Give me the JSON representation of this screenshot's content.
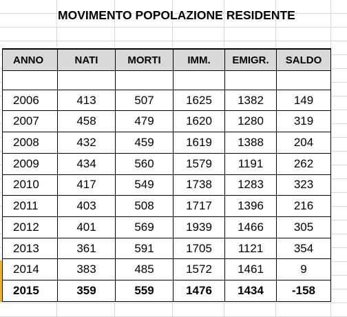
{
  "title": "MOVIMENTO POPOLAZIONE RESIDENTE",
  "table": {
    "headers": [
      "ANNO",
      "NATI",
      "MORTI",
      "IMM.",
      "EMIGR.",
      "SALDO"
    ],
    "rows": [
      [
        "2006",
        "413",
        "507",
        "1625",
        "1382",
        "149"
      ],
      [
        "2007",
        "458",
        "479",
        "1620",
        "1280",
        "319"
      ],
      [
        "2008",
        "432",
        "459",
        "1619",
        "1388",
        "204"
      ],
      [
        "2009",
        "434",
        "560",
        "1579",
        "1191",
        "262"
      ],
      [
        "2010",
        "417",
        "549",
        "1738",
        "1283",
        "323"
      ],
      [
        "2011",
        "403",
        "508",
        "1717",
        "1396",
        "216"
      ],
      [
        "2012",
        "401",
        "569",
        "1939",
        "1466",
        "305"
      ],
      [
        "2013",
        "361",
        "591",
        "1705",
        "1121",
        "354"
      ],
      [
        "2014",
        "383",
        "485",
        "1572",
        "1461",
        "9"
      ],
      [
        "2015",
        "359",
        "559",
        "1476",
        "1434",
        "-158"
      ]
    ]
  },
  "colors": {
    "header_bg": "#d9d9d9",
    "grid": "#d9d9d9",
    "selection_marker": "#f2b800"
  }
}
